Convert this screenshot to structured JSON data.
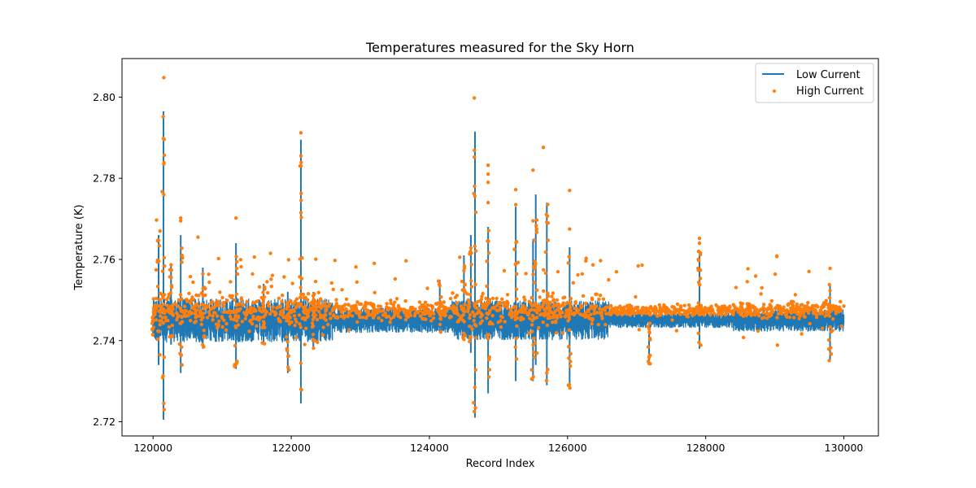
{
  "chart_data": {
    "type": "line",
    "title": "Temperatures measured for the Sky Horn",
    "xlabel": "Record Index",
    "ylabel": "Temperature (K)",
    "xlim": [
      119550,
      130500
    ],
    "ylim": [
      2.7165,
      2.8095
    ],
    "xticks": [
      120000,
      122000,
      124000,
      126000,
      128000,
      130000
    ],
    "yticks": [
      2.72,
      2.74,
      2.76,
      2.78,
      2.8
    ],
    "xtick_labels": [
      "120000",
      "122000",
      "124000",
      "126000",
      "128000",
      "130000"
    ],
    "ytick_labels": [
      "2.72",
      "2.74",
      "2.76",
      "2.78",
      "2.80"
    ],
    "grid": false,
    "legend_position": "top-right",
    "series": [
      {
        "name": "Low Current",
        "style": "line",
        "color": "#1f77b4",
        "baseline": 2.745,
        "band": 0.003,
        "spikes": [
          {
            "x": 120000,
            "lo": 2.741,
            "hi": 2.748
          },
          {
            "x": 120080,
            "lo": 2.734,
            "hi": 2.766
          },
          {
            "x": 120150,
            "lo": 2.7205,
            "hi": 2.7965
          },
          {
            "x": 120260,
            "lo": 2.739,
            "hi": 2.759
          },
          {
            "x": 120400,
            "lo": 2.732,
            "hi": 2.766
          },
          {
            "x": 120720,
            "lo": 2.738,
            "hi": 2.758
          },
          {
            "x": 121200,
            "lo": 2.733,
            "hi": 2.764
          },
          {
            "x": 121600,
            "lo": 2.739,
            "hi": 2.754
          },
          {
            "x": 121950,
            "lo": 2.732,
            "hi": 2.752
          },
          {
            "x": 122140,
            "lo": 2.7245,
            "hi": 2.7895
          },
          {
            "x": 122320,
            "lo": 2.738,
            "hi": 2.752
          },
          {
            "x": 124150,
            "lo": 2.742,
            "hi": 2.755
          },
          {
            "x": 124500,
            "lo": 2.74,
            "hi": 2.761
          },
          {
            "x": 124600,
            "lo": 2.737,
            "hi": 2.766
          },
          {
            "x": 124660,
            "lo": 2.721,
            "hi": 2.7915
          },
          {
            "x": 124850,
            "lo": 2.727,
            "hi": 2.768
          },
          {
            "x": 125250,
            "lo": 2.73,
            "hi": 2.773
          },
          {
            "x": 125500,
            "lo": 2.73,
            "hi": 2.765
          },
          {
            "x": 125540,
            "lo": 2.734,
            "hi": 2.776
          },
          {
            "x": 125700,
            "lo": 2.729,
            "hi": 2.774
          },
          {
            "x": 126030,
            "lo": 2.728,
            "hi": 2.763
          },
          {
            "x": 127180,
            "lo": 2.734,
            "hi": 2.745
          },
          {
            "x": 127910,
            "lo": 2.738,
            "hi": 2.762
          },
          {
            "x": 129800,
            "lo": 2.735,
            "hi": 2.754
          }
        ]
      },
      {
        "name": "High Current",
        "style": "scatter",
        "color": "#ff7f0e",
        "baseline": 2.7475,
        "band": 0.002,
        "outliers": [
          {
            "x": 120155,
            "y": 2.8048
          },
          {
            "x": 120150,
            "y": 2.7898
          },
          {
            "x": 120155,
            "y": 2.7835
          },
          {
            "x": 120050,
            "y": 2.7697
          },
          {
            "x": 120100,
            "y": 2.767
          },
          {
            "x": 120155,
            "y": 2.7245
          },
          {
            "x": 120160,
            "y": 2.723
          },
          {
            "x": 120400,
            "y": 2.7702
          },
          {
            "x": 120400,
            "y": 2.7695
          },
          {
            "x": 120650,
            "y": 2.7655
          },
          {
            "x": 121200,
            "y": 2.7702
          },
          {
            "x": 121700,
            "y": 2.7615
          },
          {
            "x": 122140,
            "y": 2.7912
          },
          {
            "x": 122140,
            "y": 2.7855
          },
          {
            "x": 122140,
            "y": 2.783
          },
          {
            "x": 122140,
            "y": 2.7715
          },
          {
            "x": 122140,
            "y": 2.728
          },
          {
            "x": 124650,
            "y": 2.7998
          },
          {
            "x": 124650,
            "y": 2.7852
          },
          {
            "x": 124650,
            "y": 2.7225
          },
          {
            "x": 124850,
            "y": 2.7832
          },
          {
            "x": 124850,
            "y": 2.781
          },
          {
            "x": 124850,
            "y": 2.779
          },
          {
            "x": 124850,
            "y": 2.774
          },
          {
            "x": 125250,
            "y": 2.7772
          },
          {
            "x": 125250,
            "y": 2.7735
          },
          {
            "x": 125500,
            "y": 2.782
          },
          {
            "x": 125650,
            "y": 2.7876
          },
          {
            "x": 125500,
            "y": 2.7695
          },
          {
            "x": 126030,
            "y": 2.777
          },
          {
            "x": 126030,
            "y": 2.7675
          },
          {
            "x": 125700,
            "y": 2.732
          },
          {
            "x": 127910,
            "y": 2.7652
          },
          {
            "x": 127910,
            "y": 2.764
          },
          {
            "x": 129800,
            "y": 2.7578
          }
        ]
      }
    ]
  }
}
